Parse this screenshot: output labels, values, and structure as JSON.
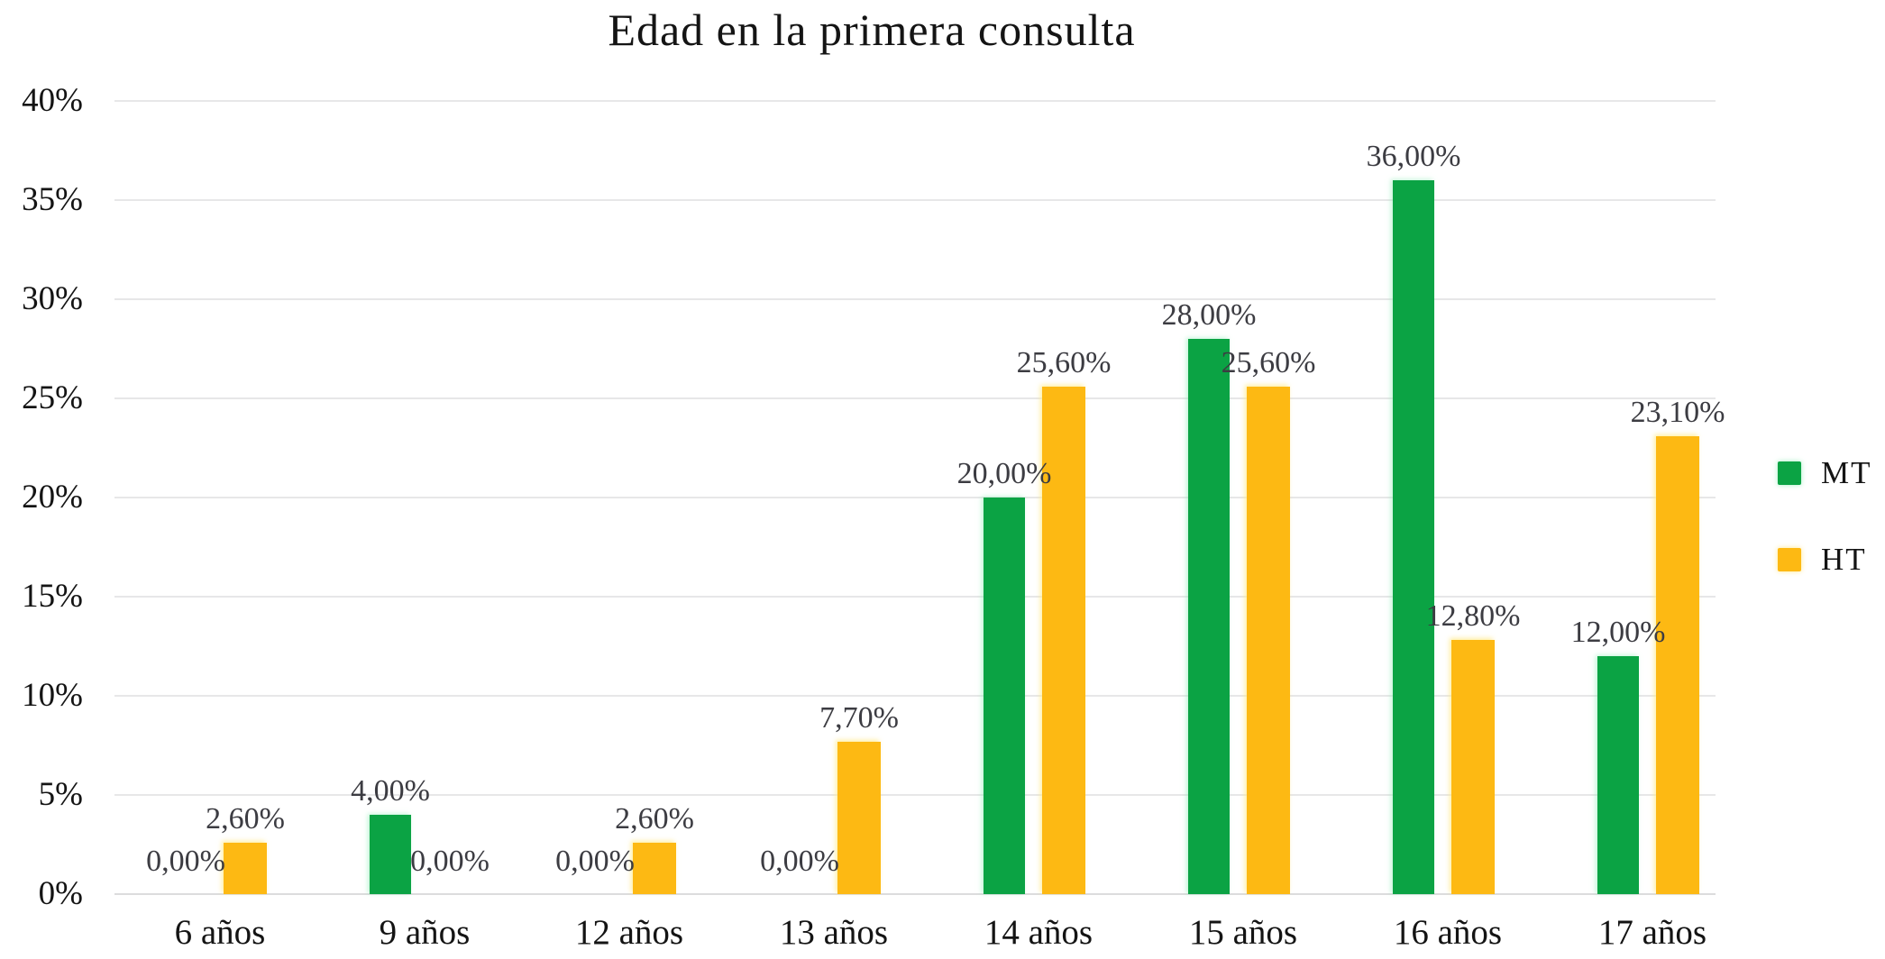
{
  "chart_data": {
    "type": "bar",
    "title": "Edad en la primera consulta",
    "categories": [
      "6 años",
      "9 años",
      "12 años",
      "13 años",
      "14 años",
      "15 años",
      "16 años",
      "17 años"
    ],
    "series": [
      {
        "name": "MT",
        "color": "#0ba344",
        "values": [
          0,
          4,
          0,
          0,
          20,
          28,
          36,
          12
        ],
        "labels": [
          "0,00%",
          "4,00%",
          "0,00%",
          "0,00%",
          "20,00%",
          "28,00%",
          "36,00%",
          "12,00%"
        ]
      },
      {
        "name": "HT",
        "color": "#fdb913",
        "values": [
          2.6,
          0,
          2.6,
          7.7,
          25.6,
          25.6,
          12.8,
          23.1
        ],
        "labels": [
          "2,60%",
          "0,00%",
          "2,60%",
          "7,70%",
          "25,60%",
          "25,60%",
          "12,80%",
          "23,10%"
        ]
      }
    ],
    "xlabel": "",
    "ylabel": "",
    "ylim": [
      0,
      40
    ],
    "y_tick_step": 5,
    "y_tick_labels": [
      "0%",
      "5%",
      "10%",
      "15%",
      "20%",
      "25%",
      "30%",
      "35%",
      "40%"
    ],
    "grid": "horizontal",
    "legend_position": "right",
    "value_label_decimal_separator": ","
  },
  "colors": {
    "mt_green": "#0ba344",
    "ht_yellow": "#fdb913",
    "gridline": "#e7e7e8",
    "text": "#141414",
    "data_label": "#3c3c42",
    "background": "#ffffff"
  }
}
